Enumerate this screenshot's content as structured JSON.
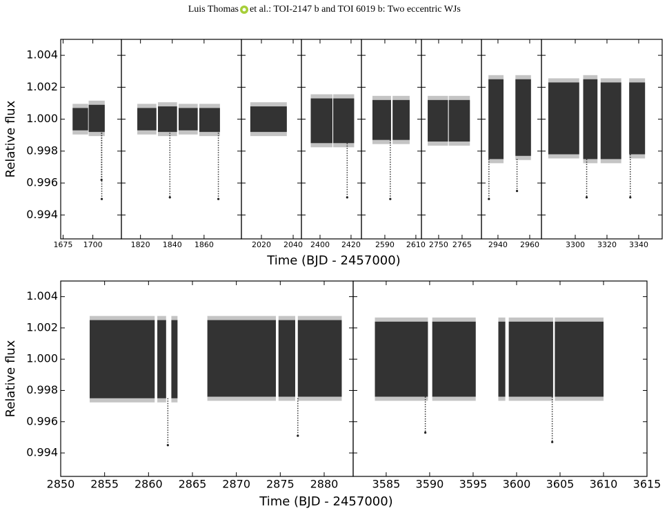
{
  "header": {
    "author": "Luis Thomas",
    "rest": "et al.: TOI-2147 b and TOI 6019 b: Two eccentric WJs"
  },
  "chart_data": [
    {
      "type": "band",
      "ylabel": "Relative flux",
      "xlabel": "Time (BJD - 2457000)",
      "xlim": [
        1673,
        1724
      ],
      "ylim": [
        0.9925,
        1.005
      ],
      "xticks": [
        1675,
        1700
      ],
      "yticks": [
        0.994,
        0.996,
        0.998,
        {
          "value": 1,
          "label": "1.000"
        },
        1.002,
        1.004
      ],
      "segments": [
        {
          "x": [
            1683,
            1696
          ],
          "y": [
            0.9993,
            1.0007
          ]
        },
        {
          "x": [
            1696.5,
            1710
          ],
          "y": [
            0.9992,
            1.0009
          ]
        }
      ],
      "dips": {
        "x": [
          1707.5,
          1707.3
        ],
        "y": [
          0.995,
          0.9962
        ]
      }
    },
    {
      "type": "band",
      "xlim": [
        1808,
        1883.5
      ],
      "ylim": [
        0.9925,
        1.005
      ],
      "xticks": [
        1820,
        1840,
        1860
      ],
      "segments": [
        {
          "x": [
            1818,
            1830
          ],
          "y": [
            0.9993,
            1.0007
          ]
        },
        {
          "x": [
            1831,
            1843
          ],
          "y": [
            0.9992,
            1.0008
          ]
        },
        {
          "x": [
            1844,
            1856
          ],
          "y": [
            0.9993,
            1.0007
          ]
        },
        {
          "x": [
            1857,
            1870
          ],
          "y": [
            0.9992,
            1.0007
          ]
        }
      ],
      "dips": {
        "x": [
          1838.5,
          1869
        ],
        "y": [
          0.9951,
          0.995
        ]
      }
    },
    {
      "type": "band",
      "xlim": [
        2007.4,
        2045.2
      ],
      "ylim": [
        0.9925,
        1.005
      ],
      "xticks": [
        2020,
        2040
      ],
      "segments": [
        {
          "x": [
            2013,
            2036
          ],
          "y": [
            0.9992,
            1.0008
          ]
        }
      ],
      "dips": {
        "x": [],
        "y": []
      }
    },
    {
      "type": "band",
      "xlim": [
        2388,
        2426.7
      ],
      "ylim": [
        0.9925,
        1.005
      ],
      "xticks": [
        2400,
        2420
      ],
      "segments": [
        {
          "x": [
            2394,
            2408
          ],
          "y": [
            0.9985,
            1.0013
          ]
        },
        {
          "x": [
            2408.5,
            2422
          ],
          "y": [
            0.9985,
            1.0013
          ]
        }
      ],
      "dips": {
        "x": [
          2417.5
        ],
        "y": [
          0.9951
        ]
      }
    },
    {
      "type": "band",
      "xlim": [
        2574.9,
        2613.6
      ],
      "ylim": [
        0.9925,
        1.005
      ],
      "xticks": [
        2590,
        2610
      ],
      "segments": [
        {
          "x": [
            2582,
            2594
          ],
          "y": [
            0.9987,
            1.0012
          ]
        },
        {
          "x": [
            2595,
            2606
          ],
          "y": [
            0.9987,
            1.0012
          ]
        }
      ],
      "dips": {
        "x": [
          2593.5
        ],
        "y": [
          0.995
        ]
      }
    },
    {
      "type": "band",
      "xlim": [
        2739,
        2777.4
      ],
      "ylim": [
        0.9925,
        1.005
      ],
      "xticks": [
        2750,
        2765
      ],
      "segments": [
        {
          "x": [
            2743,
            2756
          ],
          "y": [
            0.9986,
            1.0012
          ]
        },
        {
          "x": [
            2756.5,
            2770
          ],
          "y": [
            0.9986,
            1.0012
          ]
        }
      ],
      "dips": {
        "x": [],
        "y": []
      }
    },
    {
      "type": "band",
      "xlim": [
        2929.6,
        2967.4
      ],
      "ylim": [
        0.9925,
        1.005
      ],
      "xticks": [
        2940,
        2960
      ],
      "segments": [
        {
          "x": [
            2934,
            2943.5
          ],
          "y": [
            0.9975,
            1.0025
          ]
        },
        {
          "x": [
            2951,
            2960.8
          ],
          "y": [
            0.9977,
            1.0025
          ]
        }
      ],
      "dips": {
        "x": [
          2934.3,
          2952
        ],
        "y": [
          0.995,
          0.9955
        ]
      }
    },
    {
      "type": "band",
      "xlim": [
        3278.7,
        3354.8
      ],
      "ylim": [
        0.9925,
        1.005
      ],
      "xticks": [
        3300,
        3320,
        3340
      ],
      "segments": [
        {
          "x": [
            3283,
            3302.5
          ],
          "y": [
            0.9978,
            1.0023
          ]
        },
        {
          "x": [
            3305,
            3314
          ],
          "y": [
            0.9975,
            1.0025
          ]
        },
        {
          "x": [
            3316,
            3329
          ],
          "y": [
            0.9975,
            1.0023
          ]
        },
        {
          "x": [
            3334,
            3344
          ],
          "y": [
            0.9978,
            1.0023
          ]
        }
      ],
      "dips": {
        "x": [
          3307.2,
          3334.7
        ],
        "y": [
          0.9951,
          0.9951
        ]
      }
    },
    {
      "type": "band",
      "ylabel": "Relative flux",
      "xlabel": "Time (BJD - 2457000)",
      "xlim": [
        2850,
        2883.3
      ],
      "ylim": [
        0.9925,
        1.005
      ],
      "xticks": [
        2850,
        2855,
        2860,
        2865,
        2870,
        2875,
        2880
      ],
      "yticks": [
        0.994,
        0.996,
        0.998,
        {
          "value": 1,
          "label": "1.000"
        },
        1.002,
        1.004
      ],
      "segments": [
        {
          "x": [
            2853.3,
            2860.7
          ],
          "y": [
            0.9975,
            1.0025
          ]
        },
        {
          "x": [
            2861,
            2862
          ],
          "y": [
            0.9975,
            1.0025
          ]
        },
        {
          "x": [
            2862.6,
            2863.3
          ],
          "y": [
            0.9975,
            1.0025
          ]
        },
        {
          "x": [
            2866.7,
            2874.5
          ],
          "y": [
            0.9976,
            1.0025
          ]
        },
        {
          "x": [
            2874.8,
            2876.7
          ],
          "y": [
            0.9976,
            1.0025
          ]
        },
        {
          "x": [
            2877,
            2882
          ],
          "y": [
            0.9976,
            1.0025
          ]
        }
      ],
      "dips": {
        "x": [
          2862.2,
          2877
        ],
        "y": [
          0.9945,
          0.9951
        ]
      }
    },
    {
      "type": "band",
      "xlim": [
        3581.2,
        3615
      ],
      "ylim": [
        0.9925,
        1.005
      ],
      "xticks": [
        3585,
        3590,
        3595,
        3600,
        3605,
        3610,
        3615
      ],
      "segments": [
        {
          "x": [
            3583.7,
            3589.8
          ],
          "y": [
            0.9976,
            1.0024
          ]
        },
        {
          "x": [
            3590.3,
            3595.3
          ],
          "y": [
            0.9976,
            1.0024
          ]
        },
        {
          "x": [
            3597.9,
            3598.7
          ],
          "y": [
            0.9976,
            1.0024
          ]
        },
        {
          "x": [
            3599.1,
            3604.2
          ],
          "y": [
            0.9976,
            1.0024
          ]
        },
        {
          "x": [
            3604.4,
            3610
          ],
          "y": [
            0.9976,
            1.0024
          ]
        }
      ],
      "dips": {
        "x": [
          3589.5,
          3604.1
        ],
        "y": [
          0.9953,
          0.9947
        ]
      }
    }
  ]
}
